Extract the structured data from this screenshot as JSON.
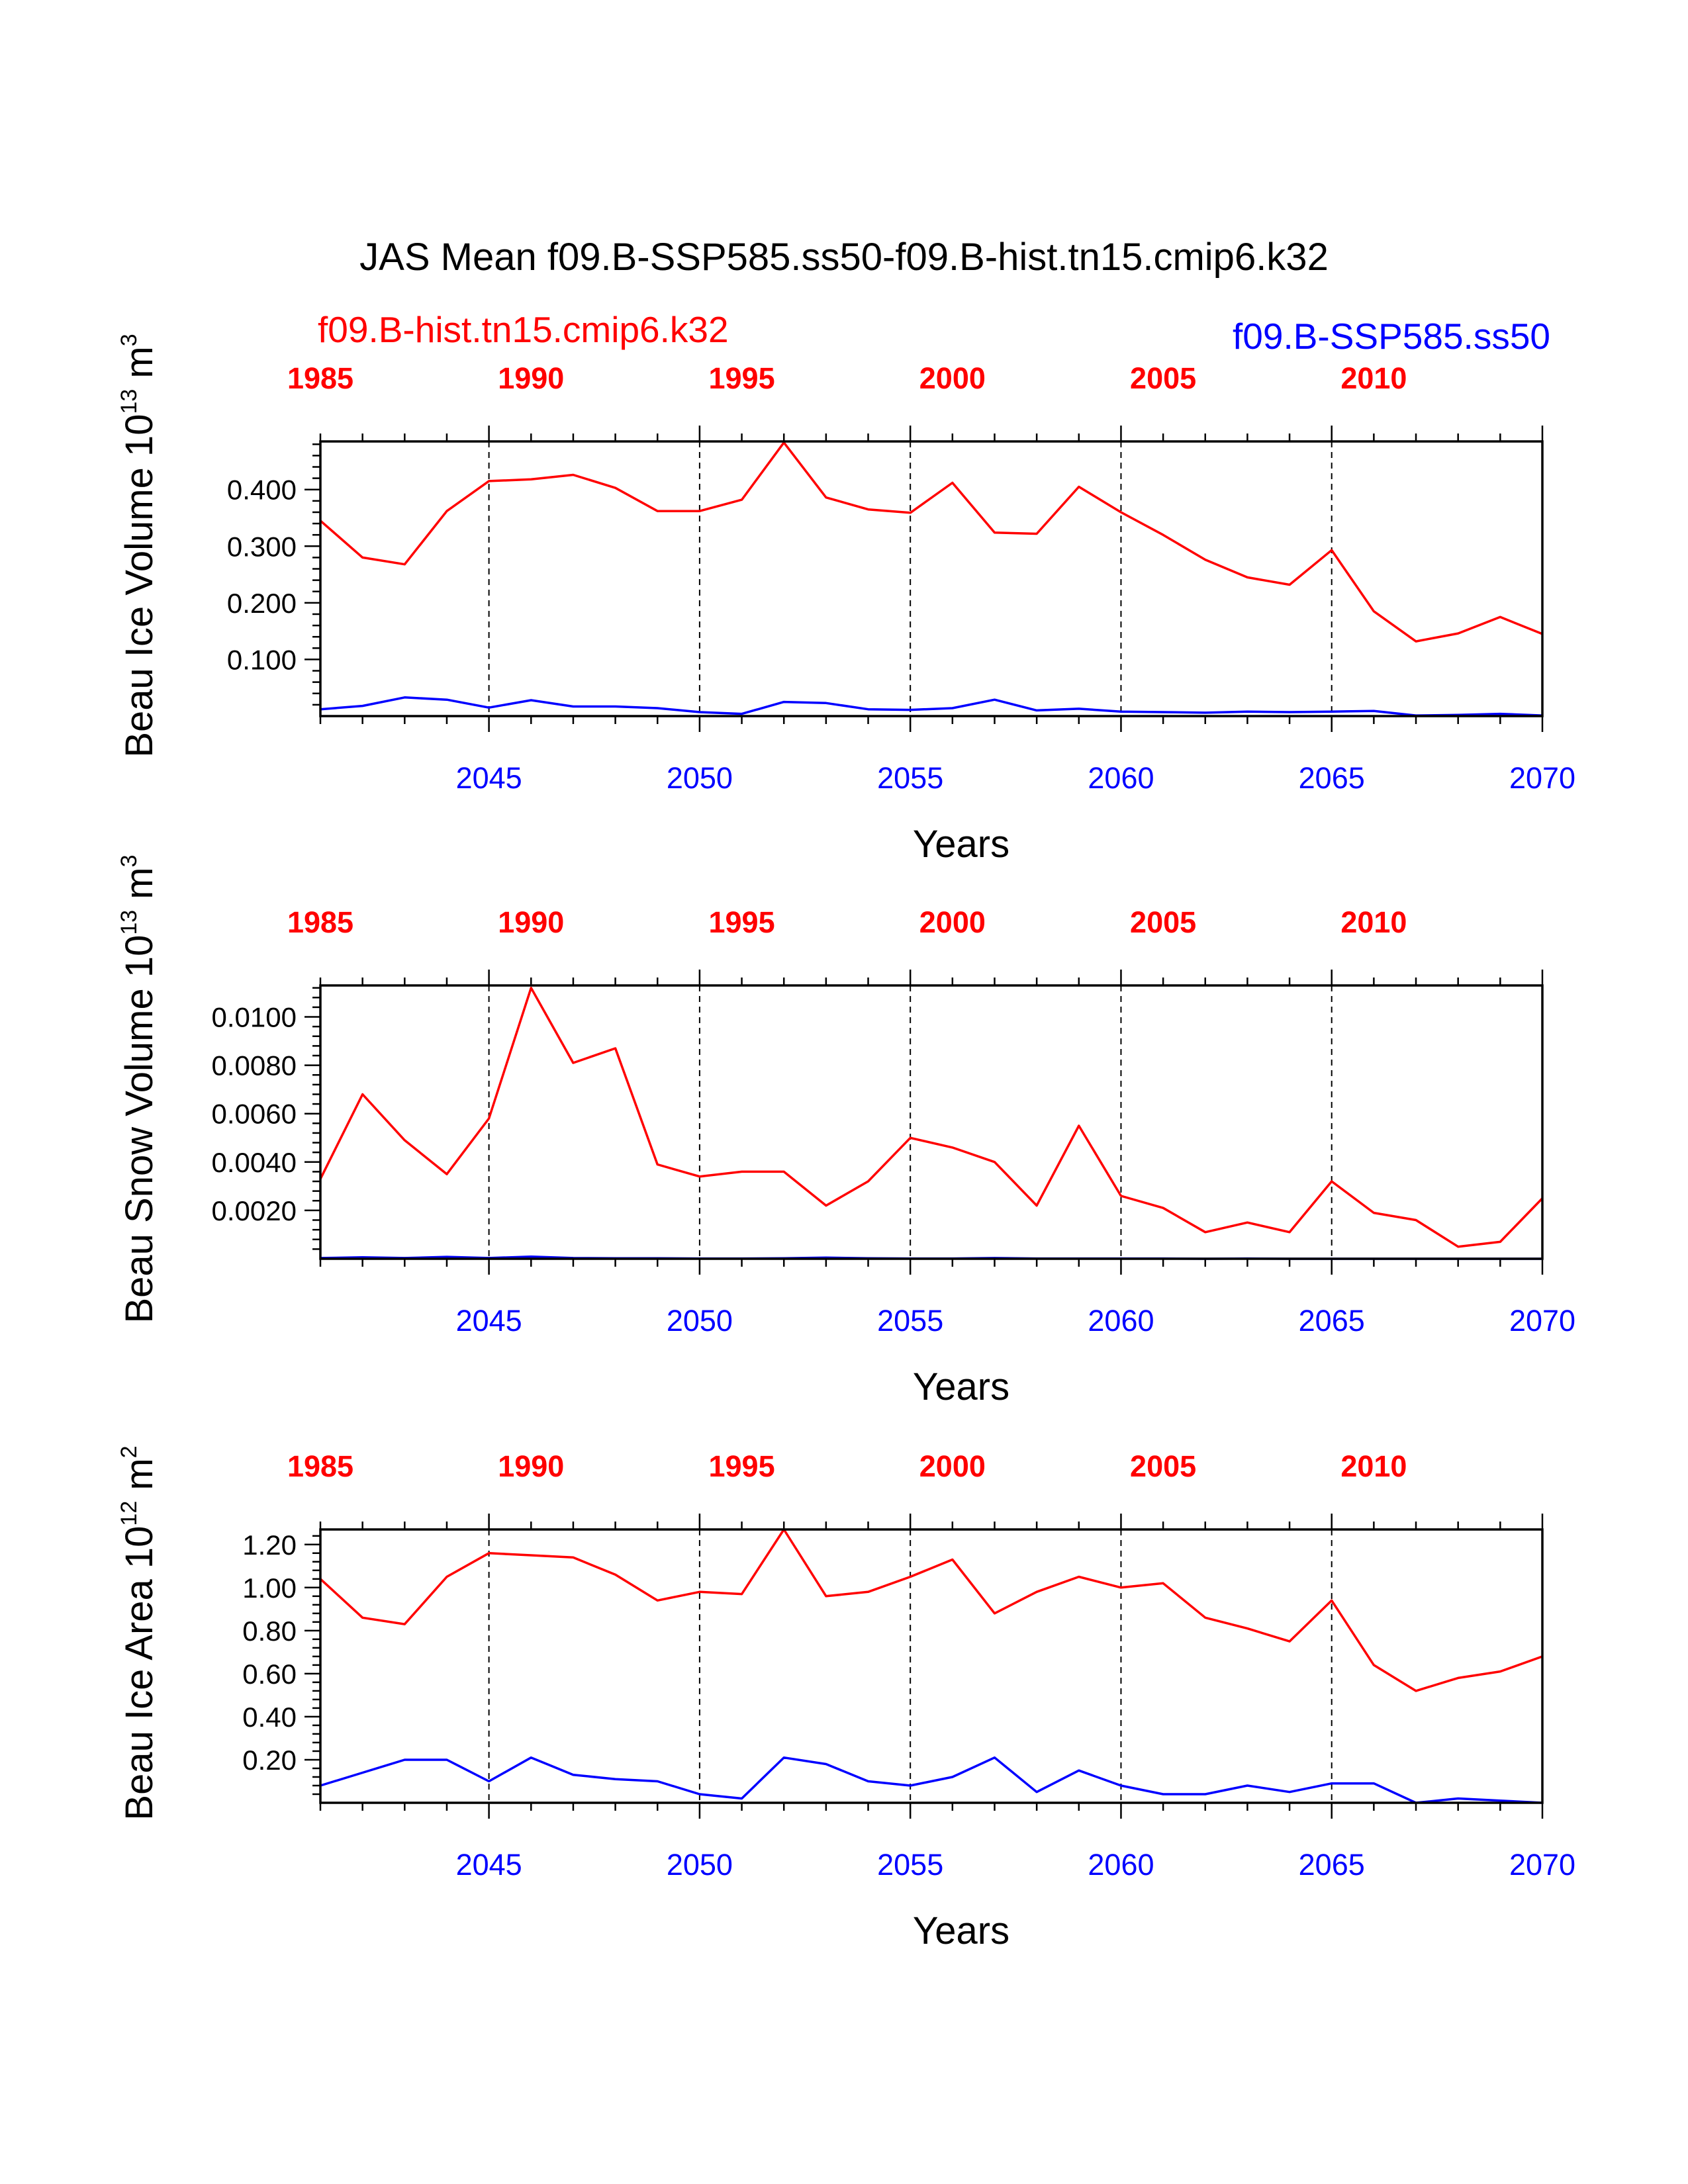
{
  "title": "JAS Mean f09.B-SSP585.ss50-f09.B-hist.tn15.cmip6.k32",
  "legend": {
    "hist": {
      "label": "f09.B-hist.tn15.cmip6.k32",
      "color": "#ff0000"
    },
    "ssp": {
      "label": "f09.B-SSP585.ss50",
      "color": "#0000ff"
    }
  },
  "chart_data": [
    {
      "type": "line",
      "ylabel": {
        "text": "Beau Ice Volume 10",
        "sup": "13",
        "unit": " m",
        "unit_sup": "3"
      },
      "xlabel": "Years",
      "x": [
        2041,
        2042,
        2043,
        2044,
        2045,
        2046,
        2047,
        2048,
        2049,
        2050,
        2051,
        2052,
        2053,
        2054,
        2055,
        2056,
        2057,
        2058,
        2059,
        2060,
        2061,
        2062,
        2063,
        2064,
        2065,
        2066,
        2067,
        2068,
        2069,
        2070
      ],
      "xlim": [
        2041,
        2070
      ],
      "ylim": [
        0.0,
        0.485
      ],
      "yticks": [
        "0.100",
        "0.200",
        "0.300",
        "0.400"
      ],
      "ytick_values": [
        0.1,
        0.2,
        0.3,
        0.4
      ],
      "bottom_ticks": [
        "2045",
        "2050",
        "2055",
        "2060",
        "2065",
        "2070"
      ],
      "bottom_tick_values": [
        2045,
        2050,
        2055,
        2060,
        2065,
        2070
      ],
      "top_ticks": [
        "1985",
        "1990",
        "1995",
        "2000",
        "2005",
        "2010"
      ],
      "top_tick_positions": [
        2041,
        2046,
        2051,
        2056,
        2061,
        2066
      ],
      "vlines": [
        2045,
        2050,
        2055,
        2060,
        2065
      ],
      "series": [
        {
          "key": "hist",
          "color": "#ff0000",
          "values": [
            0.345,
            0.28,
            0.268,
            0.362,
            0.415,
            0.418,
            0.426,
            0.403,
            0.362,
            0.362,
            0.382,
            0.483,
            0.386,
            0.365,
            0.359,
            0.412,
            0.324,
            0.322,
            0.405,
            0.36,
            0.32,
            0.276,
            0.245,
            0.232,
            0.293,
            0.185,
            0.132,
            0.146,
            0.175,
            0.145
          ]
        },
        {
          "key": "ssp",
          "color": "#0000ff",
          "values": [
            0.012,
            0.018,
            0.033,
            0.029,
            0.015,
            0.028,
            0.017,
            0.017,
            0.014,
            0.007,
            0.004,
            0.025,
            0.023,
            0.012,
            0.011,
            0.014,
            0.029,
            0.01,
            0.013,
            0.008,
            0.007,
            0.006,
            0.008,
            0.007,
            0.008,
            0.009,
            0.001,
            0.002,
            0.004,
            0.001
          ]
        }
      ]
    },
    {
      "type": "line",
      "ylabel": {
        "text": "Beau Snow Volume 10",
        "sup": "13",
        "unit": " m",
        "unit_sup": "3"
      },
      "xlabel": "Years",
      "x": [
        2041,
        2042,
        2043,
        2044,
        2045,
        2046,
        2047,
        2048,
        2049,
        2050,
        2051,
        2052,
        2053,
        2054,
        2055,
        2056,
        2057,
        2058,
        2059,
        2060,
        2061,
        2062,
        2063,
        2064,
        2065,
        2066,
        2067,
        2068,
        2069,
        2070
      ],
      "xlim": [
        2041,
        2070
      ],
      "ylim": [
        0.0,
        0.0113
      ],
      "yticks": [
        "0.0020",
        "0.0040",
        "0.0060",
        "0.0080",
        "0.0100"
      ],
      "ytick_values": [
        0.002,
        0.004,
        0.006,
        0.008,
        0.01
      ],
      "bottom_ticks": [
        "2045",
        "2050",
        "2055",
        "2060",
        "2065",
        "2070"
      ],
      "bottom_tick_values": [
        2045,
        2050,
        2055,
        2060,
        2065,
        2070
      ],
      "top_ticks": [
        "1985",
        "1990",
        "1995",
        "2000",
        "2005",
        "2010"
      ],
      "top_tick_positions": [
        2041,
        2046,
        2051,
        2056,
        2061,
        2066
      ],
      "vlines": [
        2045,
        2050,
        2055,
        2060,
        2065
      ],
      "series": [
        {
          "key": "hist",
          "color": "#ff0000",
          "values": [
            0.0033,
            0.0068,
            0.0049,
            0.0035,
            0.0058,
            0.0112,
            0.0081,
            0.0087,
            0.0039,
            0.0034,
            0.0036,
            0.0036,
            0.0022,
            0.0032,
            0.005,
            0.0046,
            0.004,
            0.0022,
            0.0055,
            0.0026,
            0.0021,
            0.0011,
            0.0015,
            0.0011,
            0.0032,
            0.0019,
            0.0016,
            0.0005,
            0.0007,
            0.0025
          ]
        },
        {
          "key": "ssp",
          "color": "#0000ff",
          "values": [
            3e-05,
            6e-05,
            3e-05,
            8e-05,
            3e-05,
            9e-05,
            3e-05,
            2e-05,
            2e-05,
            1e-05,
            1e-05,
            2e-05,
            5e-05,
            2e-05,
            1e-05,
            1e-05,
            3e-05,
            1e-05,
            1e-05,
            1e-05,
            1e-05,
            0.0,
            1e-05,
            0.0,
            0.0,
            0.0,
            0.0,
            0.0,
            0.0,
            0.0
          ]
        }
      ]
    },
    {
      "type": "line",
      "ylabel": {
        "text": "Beau Ice Area 10",
        "sup": "12",
        "unit": " m",
        "unit_sup": "2"
      },
      "xlabel": "Years",
      "x": [
        2041,
        2042,
        2043,
        2044,
        2045,
        2046,
        2047,
        2048,
        2049,
        2050,
        2051,
        2052,
        2053,
        2054,
        2055,
        2056,
        2057,
        2058,
        2059,
        2060,
        2061,
        2062,
        2063,
        2064,
        2065,
        2066,
        2067,
        2068,
        2069,
        2070
      ],
      "xlim": [
        2041,
        2070
      ],
      "ylim": [
        0.0,
        1.27
      ],
      "yticks": [
        "0.20",
        "0.40",
        "0.60",
        "0.80",
        "1.00",
        "1.20"
      ],
      "ytick_values": [
        0.2,
        0.4,
        0.6,
        0.8,
        1.0,
        1.2
      ],
      "bottom_ticks": [
        "2045",
        "2050",
        "2055",
        "2060",
        "2065",
        "2070"
      ],
      "bottom_tick_values": [
        2045,
        2050,
        2055,
        2060,
        2065,
        2070
      ],
      "top_ticks": [
        "1985",
        "1990",
        "1995",
        "2000",
        "2005",
        "2010"
      ],
      "top_tick_positions": [
        2041,
        2046,
        2051,
        2056,
        2061,
        2066
      ],
      "vlines": [
        2045,
        2050,
        2055,
        2060,
        2065
      ],
      "series": [
        {
          "key": "hist",
          "color": "#ff0000",
          "values": [
            1.04,
            0.86,
            0.83,
            1.05,
            1.16,
            1.15,
            1.14,
            1.06,
            0.94,
            0.98,
            0.97,
            1.27,
            0.96,
            0.98,
            1.05,
            1.13,
            0.88,
            0.98,
            1.05,
            1.0,
            1.02,
            0.86,
            0.81,
            0.75,
            0.94,
            0.64,
            0.52,
            0.58,
            0.61,
            0.68
          ]
        },
        {
          "key": "ssp",
          "color": "#0000ff",
          "values": [
            0.08,
            0.14,
            0.2,
            0.2,
            0.1,
            0.21,
            0.13,
            0.11,
            0.1,
            0.04,
            0.02,
            0.21,
            0.18,
            0.1,
            0.08,
            0.12,
            0.21,
            0.05,
            0.15,
            0.08,
            0.04,
            0.04,
            0.08,
            0.05,
            0.09,
            0.09,
            0.0,
            0.02,
            0.01,
            0.0
          ]
        }
      ]
    }
  ]
}
